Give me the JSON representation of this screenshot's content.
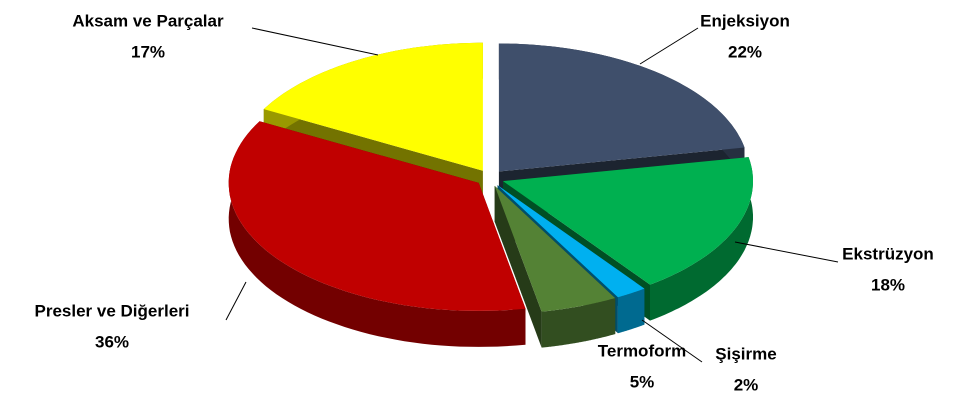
{
  "chart_data": {
    "type": "pie",
    "categories": [
      "Enjeksiyon",
      "Ekstrüzyon",
      "Şişirme",
      "Termoform",
      "Presler ve Diğerleri",
      "Aksam ve Parçalar"
    ],
    "values": [
      22,
      18,
      2,
      5,
      36,
      17
    ],
    "value_labels": [
      "22%",
      "18%",
      "2%",
      "5%",
      "36%",
      "17%"
    ],
    "colors": [
      "#3f4f6b",
      "#00b050",
      "#00b0f0",
      "#548235",
      "#c00000",
      "#ffff00"
    ]
  }
}
